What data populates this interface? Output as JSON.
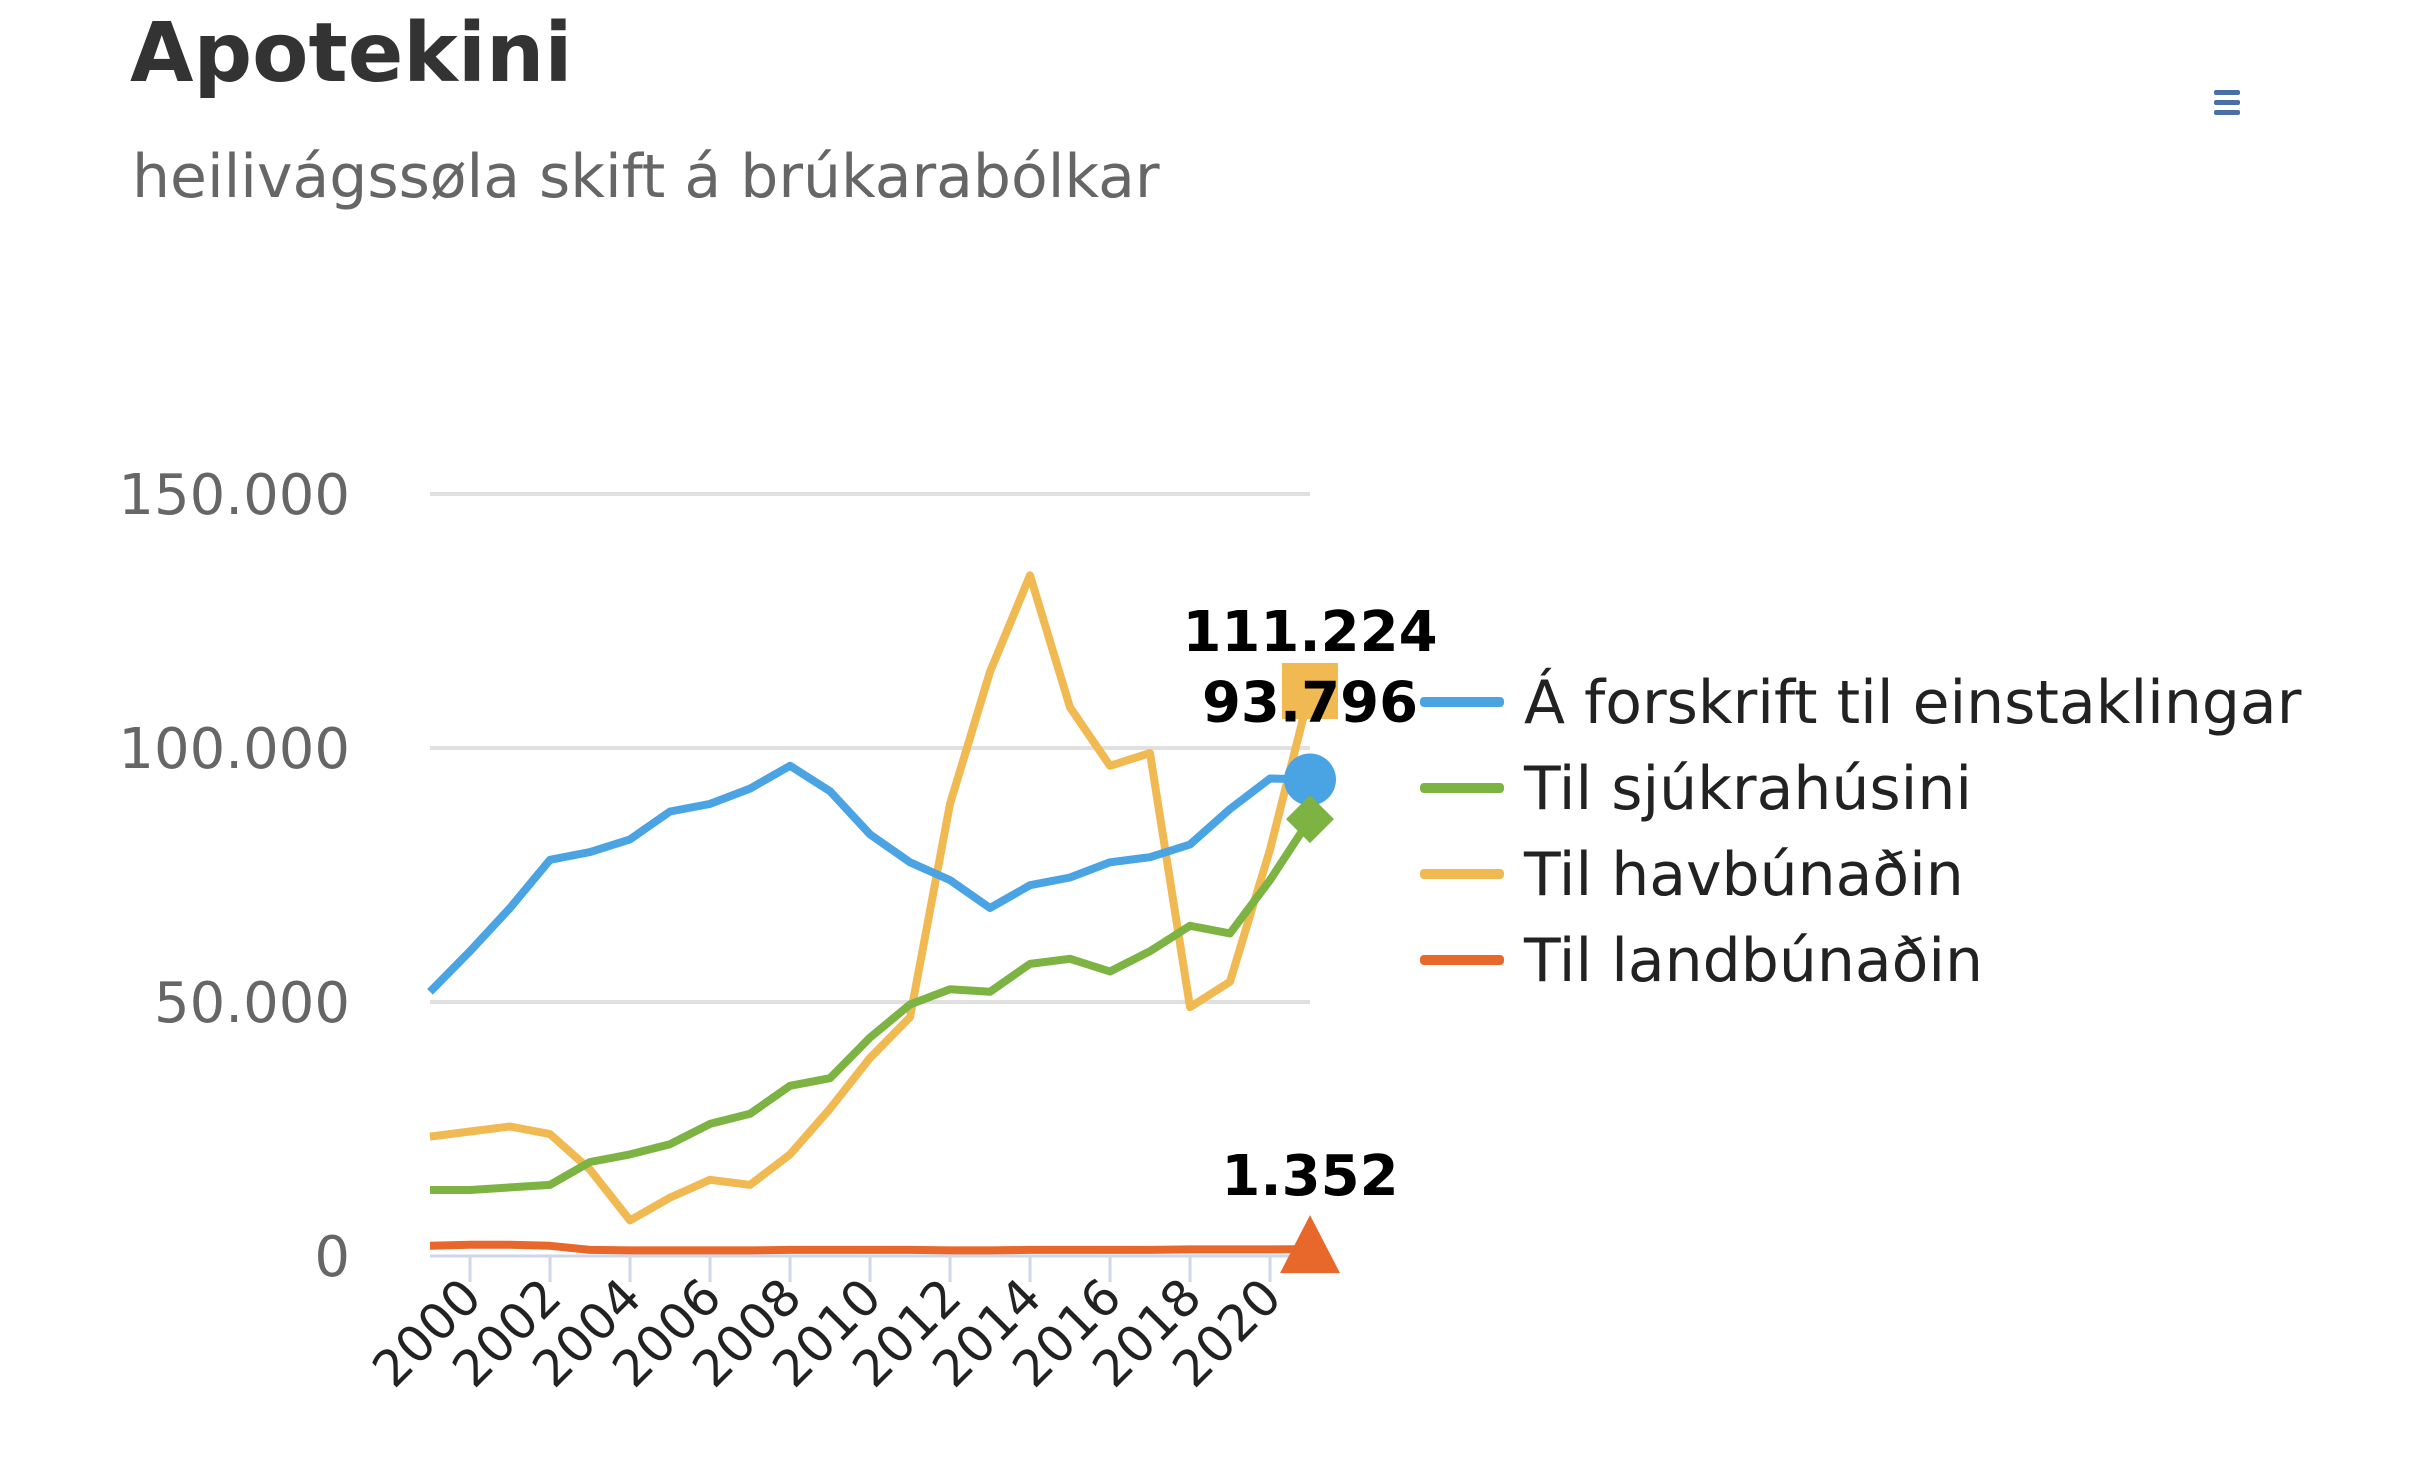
{
  "header": {
    "title": "Apotekini",
    "subtitle": "heilivágssøla skift á brúkarabólkar",
    "menu_icon": "hamburger-menu-icon"
  },
  "chart_data": {
    "type": "line",
    "x": [
      1999,
      2000,
      2001,
      2002,
      2003,
      2004,
      2005,
      2006,
      2007,
      2008,
      2009,
      2010,
      2011,
      2012,
      2013,
      2014,
      2015,
      2016,
      2017,
      2018,
      2019,
      2020,
      2021
    ],
    "x_tick_labels": [
      "2000",
      "2002",
      "2004",
      "2006",
      "2008",
      "2010",
      "2012",
      "2014",
      "2016",
      "2018",
      "2020"
    ],
    "ylim": [
      0,
      150000
    ],
    "y_tick_labels": [
      "0",
      "50.000",
      "100.000",
      "150.000"
    ],
    "grid": true,
    "legend_position": "right",
    "series": [
      {
        "name": "Á forskrift til einstaklingar",
        "color": "#4aa3e3",
        "marker": "circle",
        "values": [
          52000,
          60000,
          68500,
          78000,
          79500,
          82000,
          87500,
          89000,
          92000,
          96500,
          91500,
          83000,
          77500,
          74000,
          68500,
          73000,
          74500,
          77500,
          78500,
          81000,
          88000,
          94000,
          93796
        ],
        "end_label": "93.796"
      },
      {
        "name": "Til sjúkrahúsini",
        "color": "#7cb342",
        "marker": "diamond",
        "values": [
          13000,
          13000,
          13500,
          14000,
          18500,
          20000,
          22000,
          26000,
          28000,
          33500,
          35000,
          43000,
          49500,
          52500,
          52000,
          57500,
          58500,
          56000,
          60000,
          65000,
          63500,
          74000,
          86000
        ],
        "end_label": ""
      },
      {
        "name": "Til havbúnaðin",
        "color": "#f0b952",
        "marker": "square",
        "values": [
          23500,
          24500,
          25500,
          24000,
          17000,
          7000,
          11500,
          15000,
          14000,
          20000,
          29000,
          39000,
          47000,
          89000,
          115000,
          134000,
          108000,
          96500,
          99000,
          49000,
          54000,
          80000,
          111224
        ],
        "end_label": "111.224"
      },
      {
        "name": "Til landbúnaðin",
        "color": "#e8672a",
        "marker": "triangle",
        "values": [
          2000,
          2200,
          2200,
          2000,
          1200,
          1100,
          1100,
          1100,
          1100,
          1200,
          1200,
          1200,
          1200,
          1100,
          1100,
          1200,
          1200,
          1200,
          1200,
          1300,
          1300,
          1300,
          1352
        ],
        "end_label": "1.352"
      }
    ]
  }
}
